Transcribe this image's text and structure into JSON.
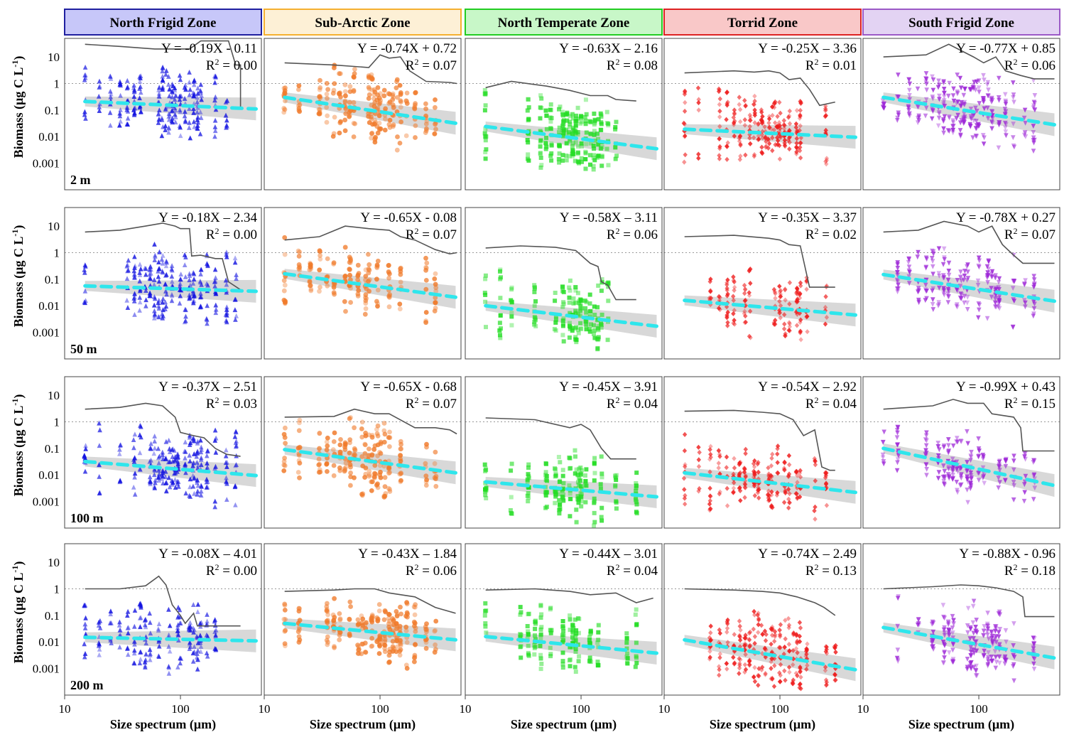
{
  "chart_data": {
    "type": "scatter",
    "x_axis": {
      "label": "Size spectrum (μm)",
      "scale": "log",
      "range": [
        10,
        500
      ],
      "ticks": [
        10,
        100
      ],
      "tick_labels": [
        "10",
        "100"
      ]
    },
    "y_axis": {
      "label_main": "Biomass (μg C L",
      "label_sup": "-1",
      "label_tail": ")",
      "scale": "log",
      "range": [
        0.0001,
        50
      ],
      "ticks": [
        10,
        1,
        0.1,
        0.01,
        0.001
      ],
      "tick_labels": [
        "10",
        "1",
        "0.1",
        "0.01",
        "0.001"
      ]
    },
    "reference_line": 1,
    "r2_label": "R",
    "zones": [
      {
        "name": "North Frigid Zone",
        "color": "#1010e0",
        "header_fill": "#c7c7f9",
        "header_border": "#2020a0",
        "marker": "triangle-up"
      },
      {
        "name": "Sub-Arctic Zone",
        "color": "#f07a2a",
        "header_fill": "#fdf0d6",
        "header_border": "#f5b030",
        "marker": "circle"
      },
      {
        "name": "North Temperate Zone",
        "color": "#22dd22",
        "header_fill": "#c8f7c8",
        "header_border": "#22cc22",
        "marker": "square"
      },
      {
        "name": "Torrid Zone",
        "color": "#ee1a1a",
        "header_fill": "#f9c8c8",
        "header_border": "#dd2222",
        "marker": "diamond"
      },
      {
        "name": "South Frigid Zone",
        "color": "#9b22d6",
        "header_fill": "#e3d3f3",
        "header_border": "#9b59c6",
        "marker": "triangle-down"
      }
    ],
    "depths": [
      "2 m",
      "50 m",
      "100 m",
      "200 m"
    ],
    "panels": [
      [
        {
          "equation": "Y = -0.19X - 0.11",
          "r2_value": " = 0.00",
          "fit": [
            0.21,
            0.11
          ],
          "envelope": [
            [
              15,
              30
            ],
            [
              30,
              25
            ],
            [
              60,
              20
            ],
            [
              90,
              20
            ],
            [
              120,
              20
            ],
            [
              150,
              40
            ],
            [
              200,
              40
            ],
            [
              230,
              40
            ],
            [
              260,
              40
            ],
            [
              300,
              5
            ],
            [
              330,
              5
            ],
            [
              330,
              0.12
            ]
          ]
        },
        {
          "equation": "Y = -0.74X + 0.72",
          "r2_value": " = 0.07",
          "fit": [
            0.3,
            0.032
          ],
          "envelope": [
            [
              15,
              6
            ],
            [
              40,
              5
            ],
            [
              80,
              4
            ],
            [
              100,
              12
            ],
            [
              120,
              9
            ],
            [
              150,
              10
            ],
            [
              180,
              3
            ],
            [
              250,
              1.2
            ],
            [
              400,
              1.1
            ],
            [
              460,
              1.0
            ]
          ]
        },
        {
          "equation": "Y = -0.63X – 2.16",
          "r2_value": " = 0.08",
          "fit": [
            0.024,
            0.0035
          ],
          "envelope": [
            [
              15,
              0.7
            ],
            [
              25,
              1.2
            ],
            [
              50,
              0.8
            ],
            [
              80,
              0.55
            ],
            [
              120,
              0.35
            ],
            [
              170,
              0.35
            ],
            [
              200,
              0.25
            ],
            [
              300,
              0.22
            ]
          ]
        },
        {
          "equation": "Y = -0.25X – 3.36",
          "r2_value": " = 0.01",
          "fit": [
            0.019,
            0.0095
          ],
          "envelope": [
            [
              15,
              2.5
            ],
            [
              40,
              3
            ],
            [
              60,
              2.7
            ],
            [
              80,
              3
            ],
            [
              100,
              2.5
            ],
            [
              120,
              1.4
            ],
            [
              150,
              1.6
            ],
            [
              180,
              0.6
            ],
            [
              220,
              0.15
            ],
            [
              300,
              0.2
            ]
          ]
        },
        {
          "equation": "Y = -0.77X + 0.85",
          "r2_value": " = 0.06",
          "fit": [
            0.3,
            0.028
          ],
          "envelope": [
            [
              15,
              10
            ],
            [
              35,
              12
            ],
            [
              55,
              30
            ],
            [
              90,
              10
            ],
            [
              110,
              6
            ],
            [
              140,
              10
            ],
            [
              170,
              3
            ],
            [
              230,
              2
            ],
            [
              300,
              1.5
            ],
            [
              450,
              1.5
            ]
          ]
        }
      ],
      [
        {
          "equation": "Y = -0.18X – 2.34",
          "r2_value": " = 0.00",
          "fit": [
            0.056,
            0.035
          ],
          "envelope": [
            [
              15,
              6
            ],
            [
              30,
              7
            ],
            [
              50,
              10
            ],
            [
              70,
              13
            ],
            [
              90,
              10
            ],
            [
              100,
              8
            ],
            [
              120,
              8
            ],
            [
              125,
              0.75
            ],
            [
              150,
              0.8
            ],
            [
              200,
              0.6
            ],
            [
              230,
              0.6
            ],
            [
              260,
              0.08
            ],
            [
              330,
              0.04
            ]
          ]
        },
        {
          "equation": "Y = -0.65X - 0.08",
          "r2_value": " = 0.07",
          "fit": [
            0.16,
            0.021
          ],
          "envelope": [
            [
              15,
              3
            ],
            [
              30,
              4
            ],
            [
              50,
              10
            ],
            [
              80,
              8
            ],
            [
              120,
              7
            ],
            [
              150,
              4
            ],
            [
              200,
              3
            ],
            [
              300,
              1.3
            ],
            [
              400,
              0.9
            ],
            [
              460,
              1.0
            ]
          ]
        },
        {
          "equation": "Y = -0.58X – 3.11",
          "r2_value": " = 0.06",
          "fit": [
            0.01,
            0.0017
          ],
          "envelope": [
            [
              15,
              1.5
            ],
            [
              30,
              1.8
            ],
            [
              60,
              1.6
            ],
            [
              90,
              1.2
            ],
            [
              120,
              0.4
            ],
            [
              140,
              0.3
            ],
            [
              150,
              0.08
            ],
            [
              170,
              0.06
            ],
            [
              200,
              0.017
            ],
            [
              300,
              0.017
            ]
          ]
        },
        {
          "equation": "Y = -0.35X – 3.37",
          "r2_value": " = 0.02",
          "fit": [
            0.016,
            0.0045
          ],
          "envelope": [
            [
              15,
              4
            ],
            [
              40,
              4.5
            ],
            [
              80,
              3.5
            ],
            [
              100,
              3
            ],
            [
              120,
              2
            ],
            [
              150,
              1.8
            ],
            [
              180,
              0.05
            ],
            [
              220,
              0.05
            ],
            [
              300,
              0.05
            ]
          ]
        },
        {
          "equation": "Y = -0.78X + 0.27",
          "r2_value": " = 0.07",
          "fit": [
            0.15,
            0.015
          ],
          "envelope": [
            [
              15,
              6
            ],
            [
              30,
              7
            ],
            [
              50,
              15
            ],
            [
              80,
              10
            ],
            [
              100,
              6
            ],
            [
              130,
              10
            ],
            [
              160,
              2
            ],
            [
              200,
              0.8
            ],
            [
              240,
              0.4
            ],
            [
              300,
              0.4
            ],
            [
              450,
              0.4
            ]
          ]
        }
      ],
      [
        {
          "equation": "Y = -0.37X – 2.51",
          "r2_value": " = 0.03",
          "fit": [
            0.032,
            0.0095
          ],
          "envelope": [
            [
              15,
              3
            ],
            [
              30,
              3.5
            ],
            [
              50,
              5
            ],
            [
              70,
              4
            ],
            [
              90,
              1.5
            ],
            [
              100,
              0.4
            ],
            [
              130,
              0.3
            ],
            [
              160,
              0.25
            ],
            [
              200,
              0.1
            ],
            [
              250,
              0.06
            ],
            [
              330,
              0.05
            ]
          ]
        },
        {
          "equation": "Y = -0.65X - 0.68",
          "r2_value": " = 0.07",
          "fit": [
            0.09,
            0.012
          ],
          "envelope": [
            [
              15,
              1.5
            ],
            [
              40,
              1.6
            ],
            [
              60,
              3
            ],
            [
              90,
              2
            ],
            [
              120,
              2
            ],
            [
              200,
              0.6
            ],
            [
              300,
              0.6
            ],
            [
              400,
              0.5
            ],
            [
              460,
              0.35
            ]
          ]
        },
        {
          "equation": "Y = -0.45X – 3.91",
          "r2_value": " = 0.04",
          "fit": [
            0.0055,
            0.0015
          ],
          "envelope": [
            [
              15,
              1.4
            ],
            [
              40,
              1.2
            ],
            [
              80,
              0.6
            ],
            [
              100,
              0.8
            ],
            [
              120,
              0.5
            ],
            [
              150,
              0.1
            ],
            [
              180,
              0.04
            ],
            [
              230,
              0.04
            ],
            [
              300,
              0.04
            ]
          ]
        },
        {
          "equation": "Y = -0.54X – 2.92",
          "r2_value": " = 0.04",
          "fit": [
            0.012,
            0.0022
          ],
          "envelope": [
            [
              15,
              2.5
            ],
            [
              40,
              2.7
            ],
            [
              70,
              2.3
            ],
            [
              100,
              2
            ],
            [
              130,
              1.2
            ],
            [
              160,
              0.3
            ],
            [
              200,
              0.5
            ],
            [
              230,
              0.02
            ],
            [
              270,
              0.015
            ],
            [
              300,
              0.015
            ]
          ]
        },
        {
          "equation": "Y = -0.99X + 0.43",
          "r2_value": " = 0.15",
          "fit": [
            0.1,
            0.004
          ],
          "envelope": [
            [
              15,
              3
            ],
            [
              40,
              4
            ],
            [
              60,
              7
            ],
            [
              80,
              5
            ],
            [
              110,
              5
            ],
            [
              130,
              2
            ],
            [
              200,
              1.5
            ],
            [
              230,
              0.6
            ],
            [
              240,
              0.08
            ],
            [
              300,
              0.08
            ],
            [
              450,
              0.08
            ]
          ]
        }
      ],
      [
        {
          "equation": "Y = -0.08X – 4.01",
          "r2_value": " = 0.00",
          "fit": [
            0.015,
            0.011
          ],
          "envelope": [
            [
              15,
              1
            ],
            [
              30,
              1
            ],
            [
              50,
              1.3
            ],
            [
              65,
              3
            ],
            [
              75,
              1.4
            ],
            [
              85,
              0.25
            ],
            [
              100,
              0.1
            ],
            [
              110,
              0.05
            ],
            [
              130,
              0.12
            ],
            [
              140,
              0.04
            ],
            [
              200,
              0.04
            ],
            [
              330,
              0.04
            ]
          ]
        },
        {
          "equation": "Y = -0.43X – 1.84",
          "r2_value": " = 0.06",
          "fit": [
            0.05,
            0.012
          ],
          "envelope": [
            [
              15,
              0.8
            ],
            [
              40,
              0.9
            ],
            [
              60,
              1
            ],
            [
              90,
              1
            ],
            [
              120,
              0.7
            ],
            [
              200,
              0.5
            ],
            [
              300,
              0.2
            ],
            [
              450,
              0.12
            ]
          ]
        },
        {
          "equation": "Y = -0.44X – 3.01",
          "r2_value": " = 0.04",
          "fit": [
            0.016,
            0.0038
          ],
          "envelope": [
            [
              15,
              0.9
            ],
            [
              40,
              1
            ],
            [
              80,
              0.8
            ],
            [
              120,
              0.6
            ],
            [
              200,
              0.7
            ],
            [
              300,
              0.3
            ],
            [
              420,
              0.45
            ]
          ]
        },
        {
          "equation": "Y = -0.74X – 2.49",
          "r2_value": " = 0.13",
          "fit": [
            0.012,
            0.0009
          ],
          "envelope": [
            [
              15,
              1
            ],
            [
              40,
              0.9
            ],
            [
              70,
              0.8
            ],
            [
              100,
              0.7
            ],
            [
              140,
              0.5
            ],
            [
              200,
              0.3
            ],
            [
              240,
              0.2
            ],
            [
              300,
              0.1
            ]
          ]
        },
        {
          "equation": "Y = -0.88X - 0.96",
          "r2_value": " = 0.18",
          "fit": [
            0.035,
            0.0025
          ],
          "envelope": [
            [
              15,
              1
            ],
            [
              40,
              1.2
            ],
            [
              70,
              1.4
            ],
            [
              100,
              1.3
            ],
            [
              140,
              1.1
            ],
            [
              200,
              0.8
            ],
            [
              240,
              0.5
            ],
            [
              250,
              0.09
            ],
            [
              300,
              0.09
            ],
            [
              450,
              0.09
            ]
          ]
        }
      ]
    ]
  }
}
